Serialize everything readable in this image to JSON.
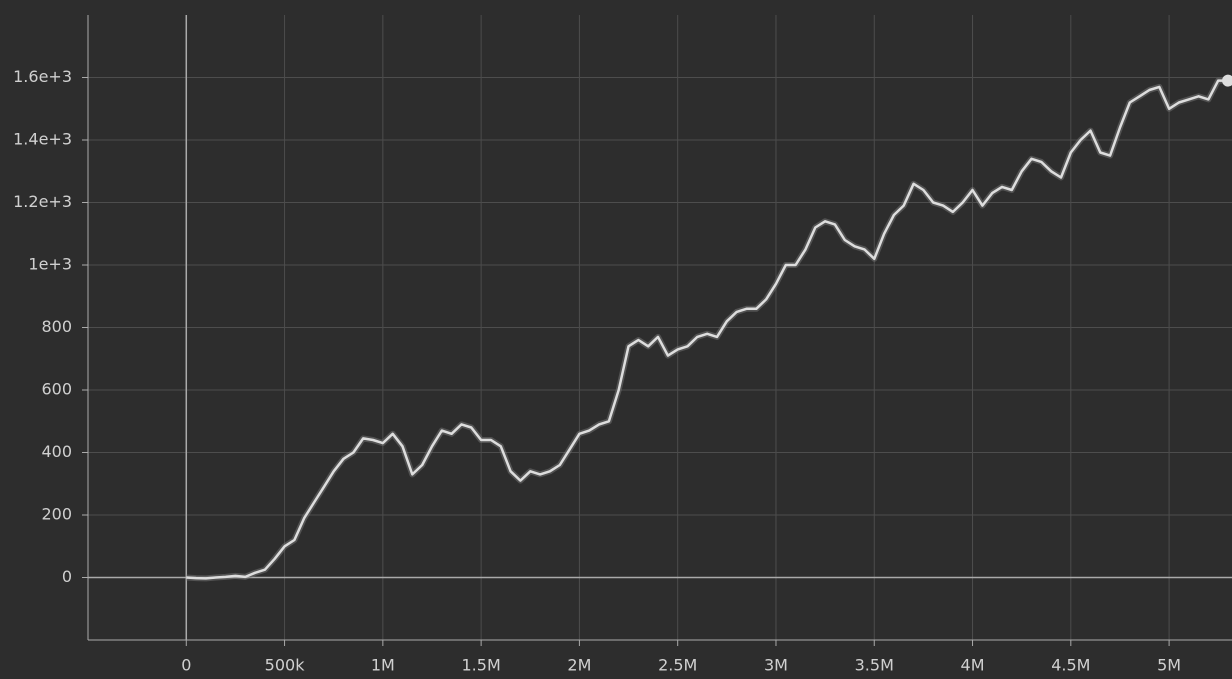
{
  "chart_data": {
    "type": "line",
    "x": [
      0,
      50000,
      100000,
      150000,
      200000,
      250000,
      300000,
      350000,
      400000,
      450000,
      500000,
      550000,
      600000,
      650000,
      700000,
      750000,
      800000,
      850000,
      900000,
      950000,
      1000000,
      1050000,
      1100000,
      1150000,
      1200000,
      1250000,
      1300000,
      1350000,
      1400000,
      1450000,
      1500000,
      1550000,
      1600000,
      1650000,
      1700000,
      1750000,
      1800000,
      1850000,
      1900000,
      1950000,
      2000000,
      2050000,
      2100000,
      2150000,
      2200000,
      2250000,
      2300000,
      2350000,
      2400000,
      2450000,
      2500000,
      2550000,
      2600000,
      2650000,
      2700000,
      2750000,
      2800000,
      2850000,
      2900000,
      2950000,
      3000000,
      3050000,
      3100000,
      3150000,
      3200000,
      3250000,
      3300000,
      3350000,
      3400000,
      3450000,
      3500000,
      3550000,
      3600000,
      3650000,
      3700000,
      3750000,
      3800000,
      3850000,
      3900000,
      3950000,
      4000000,
      4050000,
      4100000,
      4150000,
      4200000,
      4250000,
      4300000,
      4350000,
      4400000,
      4450000,
      4500000,
      4550000,
      4600000,
      4650000,
      4700000,
      4750000,
      4800000,
      4850000,
      4900000,
      4950000,
      5000000,
      5050000,
      5100000,
      5150000,
      5200000,
      5250000,
      5300000
    ],
    "values": [
      0,
      -2,
      -3,
      0,
      2,
      5,
      2,
      15,
      25,
      60,
      100,
      120,
      190,
      240,
      290,
      340,
      380,
      400,
      445,
      440,
      430,
      460,
      420,
      330,
      360,
      420,
      470,
      460,
      490,
      480,
      440,
      440,
      420,
      340,
      310,
      340,
      330,
      340,
      360,
      410,
      460,
      470,
      490,
      500,
      600,
      740,
      760,
      740,
      770,
      710,
      730,
      740,
      770,
      780,
      770,
      820,
      850,
      860,
      860,
      890,
      940,
      1000,
      1000,
      1050,
      1120,
      1140,
      1130,
      1080,
      1060,
      1050,
      1020,
      1100,
      1160,
      1190,
      1260,
      1240,
      1200,
      1190,
      1170,
      1200,
      1240,
      1190,
      1230,
      1250,
      1240,
      1300,
      1340,
      1330,
      1300,
      1280,
      1360,
      1400,
      1430,
      1360,
      1350,
      1440,
      1520,
      1540,
      1560,
      1570,
      1500,
      1520,
      1530,
      1540,
      1530,
      1590,
      1590
    ],
    "color": "#dddddd",
    "xlim": [
      -500000,
      5320000
    ],
    "ylim": [
      -200,
      1800
    ],
    "xticks": [
      0,
      {
        "value": 500000,
        "label": "500k"
      },
      {
        "value": 1000000,
        "label": "1M"
      },
      {
        "value": 1500000,
        "label": "1.5M"
      },
      {
        "value": 2000000,
        "label": "2M"
      },
      {
        "value": 2500000,
        "label": "2.5M"
      },
      {
        "value": 3000000,
        "label": "3M"
      },
      {
        "value": 3500000,
        "label": "3.5M"
      },
      {
        "value": 4000000,
        "label": "4M"
      },
      {
        "value": 4500000,
        "label": "4.5M"
      },
      {
        "value": 5000000,
        "label": "5M"
      }
    ],
    "yticks": [
      0,
      200,
      400,
      600,
      800,
      {
        "value": 1000,
        "label": "1e+3"
      },
      {
        "value": 1200,
        "label": "1.2e+3"
      },
      {
        "value": 1400,
        "label": "1.4e+3"
      },
      {
        "value": 1600,
        "label": "1.6e+3"
      }
    ],
    "grid": true
  }
}
